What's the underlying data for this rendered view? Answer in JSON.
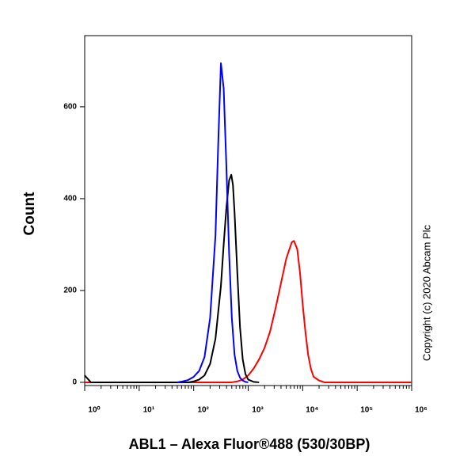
{
  "chart_data": {
    "type": "line",
    "xlabel": "ABL1 – Alexa Fluor®488 (530/30BP)",
    "ylabel": "Count",
    "annotation": "Copyright (c) 2020 Abcam Plc",
    "xscale": "log",
    "xlim": [
      1,
      1000000
    ],
    "xticks": [
      {
        "value": 1,
        "label": "10⁰"
      },
      {
        "value": 10,
        "label": "10¹"
      },
      {
        "value": 100,
        "label": "10²"
      },
      {
        "value": 1000,
        "label": "10³"
      },
      {
        "value": 10000,
        "label": "10⁴"
      },
      {
        "value": 100000,
        "label": "10⁵"
      },
      {
        "value": 1000000,
        "label": "10⁶"
      }
    ],
    "ylim": [
      -7,
      755
    ],
    "yticks": [
      0,
      200,
      400,
      600
    ],
    "grid": false,
    "series": [
      {
        "color": "#ff0000",
        "x": [
          1,
          500,
          631,
          794,
          1000,
          1259,
          1585,
          1995,
          2512,
          3162,
          3981,
          5012,
          6310,
          6918,
          7943,
          8913,
          10000,
          11220,
          12589,
          14125,
          15849,
          19953,
          25119,
          1000000
        ],
        "values": [
          0,
          0,
          2,
          6,
          15,
          30,
          50,
          75,
          110,
          160,
          215,
          270,
          305,
          308,
          290,
          240,
          170,
          110,
          60,
          30,
          12,
          4,
          0,
          0
        ]
      },
      {
        "color": "#000000",
        "x": [
          1,
          1.3,
          80,
          100,
          126,
          158,
          200,
          251,
          316,
          355,
          398,
          447,
          490,
          525,
          562,
          631,
          708,
          794,
          891,
          1000,
          1259,
          1585
        ],
        "values": [
          15,
          0,
          0,
          2,
          6,
          15,
          40,
          95,
          210,
          300,
          380,
          440,
          452,
          430,
          370,
          240,
          120,
          50,
          18,
          6,
          1,
          0
        ]
      },
      {
        "color": "#0000ff",
        "x": [
          50,
          63,
          79,
          100,
          126,
          158,
          200,
          251,
          282,
          316,
          355,
          398,
          447,
          501,
          562,
          631,
          708,
          794,
          891,
          1000
        ],
        "values": [
          0,
          2,
          5,
          12,
          25,
          55,
          140,
          320,
          520,
          695,
          640,
          470,
          280,
          140,
          60,
          25,
          10,
          4,
          1,
          0
        ]
      }
    ]
  }
}
